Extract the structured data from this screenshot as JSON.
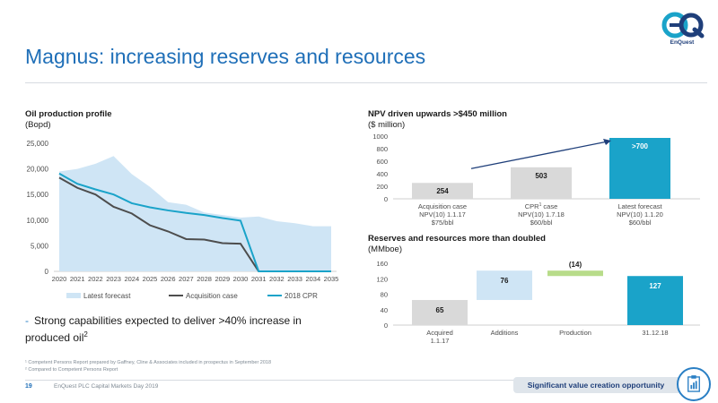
{
  "page": {
    "title": "Magnus: increasing reserves and resources",
    "logo_text": "EnQuest",
    "page_number": "19",
    "footer": "EnQuest PLC Capital Markets Day 2019",
    "callout": "Significant value creation opportunity",
    "bullet": "Strong capabilities expected to deliver >40% increase in produced oil",
    "bullet_superscript": "2",
    "footnotes": [
      "¹ Competent Persons Report prepared by Gaffney, Cline & Associates included in prospectus in September 2018",
      "² Compared to Competent Persons Report"
    ],
    "colors": {
      "accent": "#1f6fb8",
      "teal": "#1aa3c9",
      "grey_bar": "#d9d9d9",
      "light_blue": "#cfe5f5",
      "green": "#b8dc8a",
      "dark_line": "#4d4d4d"
    },
    "icons": [
      "enquest-logo-icon",
      "clipboard-chart-icon",
      "arrow-icon"
    ]
  },
  "chart_data": [
    {
      "id": "production",
      "type": "line",
      "title": "Oil production profile",
      "subtitle": "(Bopd)",
      "x": [
        "2020",
        "2021",
        "2022",
        "2023",
        "2024",
        "2025",
        "2026",
        "2027",
        "2028",
        "2029",
        "2030",
        "2031",
        "2032",
        "2033",
        "2034",
        "2035"
      ],
      "ylim": [
        0,
        25000
      ],
      "yticks": [
        "0",
        "5,000",
        "10,000",
        "15,000",
        "20,000",
        "25,000"
      ],
      "ytick_values": [
        0,
        5000,
        10000,
        15000,
        20000,
        25000
      ],
      "series": [
        {
          "name": "Latest forecast",
          "style": "area",
          "color": "#cfe5f5",
          "values": [
            19500,
            20000,
            21000,
            22500,
            19000,
            16500,
            13500,
            13000,
            11500,
            11000,
            10500,
            10700,
            9800,
            9400,
            8800,
            8800
          ]
        },
        {
          "name": "Acquisition case",
          "style": "line",
          "color": "#4d4d4d",
          "values": [
            18300,
            16300,
            15000,
            12600,
            11300,
            9000,
            7800,
            6300,
            6200,
            5500,
            5400,
            0,
            0,
            0,
            0,
            0
          ]
        },
        {
          "name": "2018 CPR",
          "style": "line",
          "color": "#1aa3c9",
          "values": [
            19100,
            17100,
            16000,
            15000,
            13300,
            12500,
            11900,
            11400,
            11000,
            10400,
            9900,
            0,
            0,
            0,
            0,
            0
          ]
        }
      ],
      "grid": false,
      "legend": "bottom"
    },
    {
      "id": "npv",
      "type": "bar",
      "title": "NPV driven upwards >$450 million",
      "subtitle": "($ million)",
      "ylim": [
        0,
        1000
      ],
      "yticks": [
        "0",
        "200",
        "400",
        "600",
        "800",
        "1000"
      ],
      "ytick_values": [
        0,
        200,
        400,
        600,
        800,
        1000
      ],
      "categories": [
        [
          "Acquisition case",
          "NPV(10) 1.1.17",
          "$75/bbl"
        ],
        [
          "CPR",
          "case",
          "NPV(10) 1.7.18",
          "$60/bbl"
        ],
        [
          "Latest forecast",
          "NPV(10) 1.1.20",
          "$60/bbl"
        ]
      ],
      "cpr_superscript": "1",
      "values": [
        254,
        503,
        700
      ],
      "labels": [
        "254",
        "503",
        ">700"
      ],
      "colors": [
        "#d9d9d9",
        "#d9d9d9",
        "#1aa3c9"
      ],
      "label_colors": [
        "#1a1a1a",
        "#1a1a1a",
        "#ffffff"
      ],
      "arrow": true
    },
    {
      "id": "reserves",
      "type": "bar",
      "subtype": "waterfall",
      "title": "Reserves and resources more than doubled",
      "subtitle": "(MMboe)",
      "ylim": [
        0,
        160
      ],
      "yticks": [
        "0",
        "40",
        "80",
        "120",
        "160"
      ],
      "ytick_values": [
        0,
        40,
        80,
        120,
        160
      ],
      "categories": [
        [
          "Acquired",
          "1.1.17"
        ],
        [
          "Additions"
        ],
        [
          "Production"
        ],
        [
          "31.12.18"
        ]
      ],
      "bars": [
        {
          "base": 0,
          "top": 65,
          "label": "65",
          "color": "#d9d9d9",
          "label_color": "#1a1a1a"
        },
        {
          "base": 65,
          "top": 141,
          "label": "76",
          "color": "#cfe5f5",
          "label_color": "#1a1a1a"
        },
        {
          "base": 127,
          "top": 141,
          "label": "(14)",
          "color": "#b8dc8a",
          "label_color": "#1a1a1a"
        },
        {
          "base": 0,
          "top": 127,
          "label": "127",
          "color": "#1aa3c9",
          "label_color": "#ffffff"
        }
      ]
    }
  ]
}
